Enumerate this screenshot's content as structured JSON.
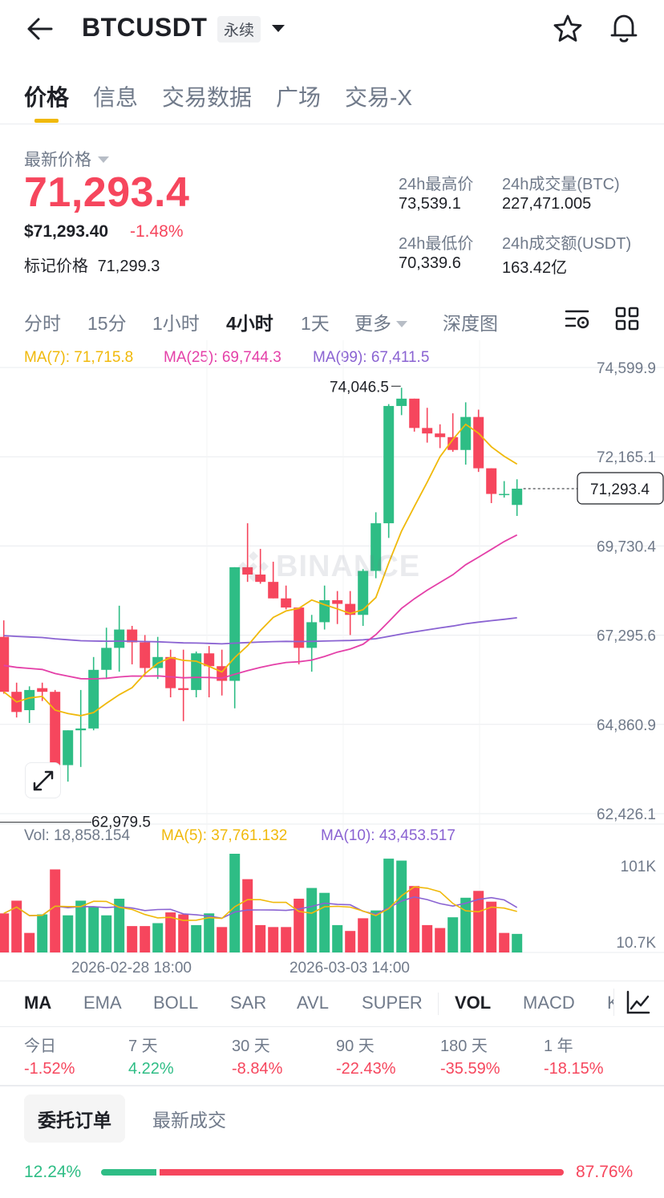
{
  "header": {
    "symbol": "BTCUSDT",
    "badge": "永续"
  },
  "tabs": [
    {
      "label": "价格",
      "active": true
    },
    {
      "label": "信息"
    },
    {
      "label": "交易数据"
    },
    {
      "label": "广场"
    },
    {
      "label": "交易-X"
    }
  ],
  "price": {
    "label": "最新价格",
    "last": "71,293.4",
    "usd": "$71,293.40",
    "change": "-1.48%",
    "mark_label": "标记价格",
    "mark_value": "71,299.3"
  },
  "stats": {
    "high_label": "24h最高价",
    "high": "73,539.1",
    "vol_btc_label": "24h成交量(BTC)",
    "vol_btc": "227,471.005",
    "low_label": "24h最低价",
    "low": "70,339.6",
    "vol_usdt_label": "24h成交额(USDT)",
    "vol_usdt": "163.42亿"
  },
  "timeframes": [
    {
      "label": "分时"
    },
    {
      "label": "15分"
    },
    {
      "label": "1小时"
    },
    {
      "label": "4小时",
      "active": true
    },
    {
      "label": "1天"
    },
    {
      "label": "更多"
    },
    {
      "label": "深度图"
    }
  ],
  "ma_legend": {
    "ma7": "MA(7): 71,715.8",
    "ma25": "MA(25): 69,744.3",
    "ma99": "MA(99): 67,411.5"
  },
  "vol_legend": {
    "vol": "Vol: 18,858.154",
    "ma5": "MA(5): 37,761.132",
    "ma10": "MA(10): 43,453.517"
  },
  "watermark": "BINANCE",
  "colors": {
    "up": "#2ebd85",
    "down": "#f6465d",
    "ma7": "#f0b90b",
    "ma25": "#e440a8",
    "ma99": "#8a63d2",
    "accent": "#f0b90b"
  },
  "chart_data": {
    "type": "candlestick",
    "interval": "4h",
    "price_axis_ticks": [
      "74,599.9",
      "72,165.1",
      "69,730.4",
      "67,295.6",
      "64,860.9",
      "62,426.1"
    ],
    "price_ylim": [
      62426.1,
      74599.9
    ],
    "current_price_label": "71,293.4",
    "current_price": 71293.4,
    "high_marker_label": "74,046.5",
    "high_marker": 74046.5,
    "low_marker_label": "62,979.5",
    "low_marker": 62979.5,
    "volume_axis_ticks": [
      "101K",
      "10.7K"
    ],
    "time_labels": [
      "2026-02-28 18:00",
      "2026-03-03 14:00"
    ],
    "candles": [
      {
        "o": 67250,
        "h": 67700,
        "l": 65700,
        "c": 65750
      },
      {
        "o": 65750,
        "h": 66000,
        "l": 65050,
        "c": 65200
      },
      {
        "o": 65250,
        "h": 65900,
        "l": 64900,
        "c": 65800
      },
      {
        "o": 65850,
        "h": 66000,
        "l": 65500,
        "c": 65750
      },
      {
        "o": 65750,
        "h": 65800,
        "l": 62980,
        "c": 63750
      },
      {
        "o": 63750,
        "h": 64700,
        "l": 63300,
        "c": 64700
      },
      {
        "o": 64700,
        "h": 65800,
        "l": 63700,
        "c": 64750
      },
      {
        "o": 64750,
        "h": 66700,
        "l": 64700,
        "c": 66350
      },
      {
        "o": 66350,
        "h": 67500,
        "l": 66100,
        "c": 66950
      },
      {
        "o": 66950,
        "h": 68100,
        "l": 66300,
        "c": 67450
      },
      {
        "o": 67450,
        "h": 67550,
        "l": 66500,
        "c": 67100
      },
      {
        "o": 67100,
        "h": 67300,
        "l": 66200,
        "c": 66400
      },
      {
        "o": 66400,
        "h": 67250,
        "l": 66100,
        "c": 66700
      },
      {
        "o": 66700,
        "h": 66900,
        "l": 65600,
        "c": 65850
      },
      {
        "o": 65850,
        "h": 66900,
        "l": 64950,
        "c": 65800
      },
      {
        "o": 65800,
        "h": 66850,
        "l": 65600,
        "c": 66800
      },
      {
        "o": 66800,
        "h": 67000,
        "l": 65600,
        "c": 66450
      },
      {
        "o": 66450,
        "h": 66900,
        "l": 65650,
        "c": 66050
      },
      {
        "o": 66050,
        "h": 69150,
        "l": 65300,
        "c": 69150
      },
      {
        "o": 69150,
        "h": 70350,
        "l": 68750,
        "c": 68950
      },
      {
        "o": 68950,
        "h": 69650,
        "l": 68700,
        "c": 68750
      },
      {
        "o": 68750,
        "h": 69300,
        "l": 68300,
        "c": 68300
      },
      {
        "o": 68300,
        "h": 68650,
        "l": 68000,
        "c": 68050
      },
      {
        "o": 68050,
        "h": 68050,
        "l": 66500,
        "c": 66950
      },
      {
        "o": 66950,
        "h": 67850,
        "l": 66300,
        "c": 67650
      },
      {
        "o": 67650,
        "h": 68650,
        "l": 67450,
        "c": 68250
      },
      {
        "o": 68250,
        "h": 68500,
        "l": 67600,
        "c": 68150
      },
      {
        "o": 68150,
        "h": 68500,
        "l": 67300,
        "c": 67850
      },
      {
        "o": 67850,
        "h": 69100,
        "l": 67550,
        "c": 69050
      },
      {
        "o": 69050,
        "h": 70650,
        "l": 68850,
        "c": 70350
      },
      {
        "o": 70350,
        "h": 73600,
        "l": 69950,
        "c": 73550
      },
      {
        "o": 73550,
        "h": 74046.5,
        "l": 73300,
        "c": 73750
      },
      {
        "o": 73750,
        "h": 73750,
        "l": 72850,
        "c": 72950
      },
      {
        "o": 72950,
        "h": 73500,
        "l": 72550,
        "c": 72800
      },
      {
        "o": 72800,
        "h": 73050,
        "l": 72400,
        "c": 72700
      },
      {
        "o": 72700,
        "h": 73350,
        "l": 72300,
        "c": 72350
      },
      {
        "o": 72350,
        "h": 73650,
        "l": 71950,
        "c": 73250
      },
      {
        "o": 73250,
        "h": 73450,
        "l": 71750,
        "c": 71850
      },
      {
        "o": 71850,
        "h": 71850,
        "l": 70900,
        "c": 71150
      },
      {
        "o": 71150,
        "h": 71500,
        "l": 71050,
        "c": 71150
      },
      {
        "o": 70850,
        "h": 71550,
        "l": 70550,
        "c": 71293.4
      }
    ],
    "volumes": [
      {
        "v": 40000,
        "up": false
      },
      {
        "v": 53000,
        "up": false
      },
      {
        "v": 20000,
        "up": false
      },
      {
        "v": 39000,
        "up": true
      },
      {
        "v": 85000,
        "up": false
      },
      {
        "v": 38000,
        "up": true
      },
      {
        "v": 53000,
        "up": true
      },
      {
        "v": 47000,
        "up": true
      },
      {
        "v": 38000,
        "up": true
      },
      {
        "v": 55000,
        "up": true
      },
      {
        "v": 27000,
        "up": false
      },
      {
        "v": 27000,
        "up": false
      },
      {
        "v": 30000,
        "up": true
      },
      {
        "v": 41000,
        "up": false
      },
      {
        "v": 39000,
        "up": false
      },
      {
        "v": 28000,
        "up": true
      },
      {
        "v": 40000,
        "up": true
      },
      {
        "v": 26000,
        "up": false
      },
      {
        "v": 101000,
        "up": true
      },
      {
        "v": 75000,
        "up": false
      },
      {
        "v": 28000,
        "up": false
      },
      {
        "v": 26000,
        "up": false
      },
      {
        "v": 26000,
        "up": false
      },
      {
        "v": 55000,
        "up": false
      },
      {
        "v": 66000,
        "up": true
      },
      {
        "v": 61000,
        "up": true
      },
      {
        "v": 28000,
        "up": true
      },
      {
        "v": 22000,
        "up": false
      },
      {
        "v": 35000,
        "up": false
      },
      {
        "v": 43000,
        "up": true
      },
      {
        "v": 96000,
        "up": true
      },
      {
        "v": 94000,
        "up": true
      },
      {
        "v": 68000,
        "up": false
      },
      {
        "v": 28000,
        "up": false
      },
      {
        "v": 25000,
        "up": false
      },
      {
        "v": 36000,
        "up": true
      },
      {
        "v": 56000,
        "up": true
      },
      {
        "v": 63000,
        "up": false
      },
      {
        "v": 52000,
        "up": false
      },
      {
        "v": 20000,
        "up": false
      },
      {
        "v": 19000,
        "up": true
      }
    ],
    "volume_ylim": [
      0,
      101000
    ]
  },
  "indicators": [
    {
      "label": "MA",
      "active": true
    },
    {
      "label": "EMA"
    },
    {
      "label": "BOLL"
    },
    {
      "label": "SAR"
    },
    {
      "label": "AVL"
    },
    {
      "label": "SUPER"
    },
    {
      "label": "VOL",
      "active": true
    },
    {
      "label": "MACD"
    },
    {
      "label": "K"
    }
  ],
  "performance": [
    {
      "label": "今日",
      "value": "-1.52%",
      "up": false
    },
    {
      "label": "7 天",
      "value": "4.22%",
      "up": true
    },
    {
      "label": "30 天",
      "value": "-8.84%",
      "up": false
    },
    {
      "label": "90 天",
      "value": "-22.43%",
      "up": false
    },
    {
      "label": "180 天",
      "value": "-35.59%",
      "up": false
    },
    {
      "label": "1 年",
      "value": "-18.15%",
      "up": false
    }
  ],
  "order_tabs": [
    {
      "label": "委托订单",
      "active": true
    },
    {
      "label": "最新成交"
    }
  ],
  "ratio": {
    "buy": "12.24%",
    "sell": "87.76%",
    "buy_fraction": 0.1224
  }
}
